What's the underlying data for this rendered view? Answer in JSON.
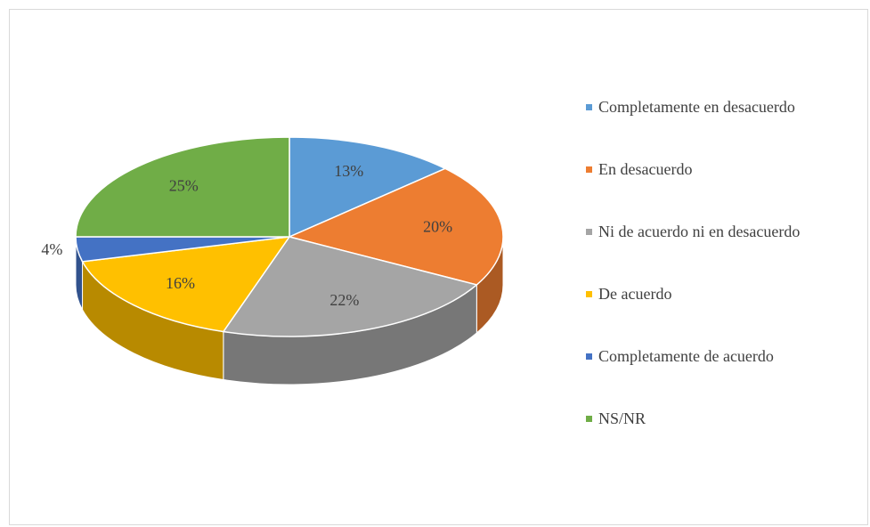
{
  "chart_data": {
    "type": "pie",
    "categories": [
      "Completamente en desacuerdo",
      "En desacuerdo",
      "Ni de acuerdo ni en desacuerdo",
      "De acuerdo",
      "Completamente de acuerdo",
      "NS/NR"
    ],
    "values": [
      13,
      20,
      22,
      16,
      4,
      25
    ],
    "value_labels": [
      "13%",
      "20%",
      "22%",
      "16%",
      "4%",
      "25%"
    ],
    "colors": [
      "#5b9bd5",
      "#ed7d31",
      "#a5a5a5",
      "#ffc000",
      "#4472c4",
      "#70ad47"
    ],
    "legend": "right"
  }
}
